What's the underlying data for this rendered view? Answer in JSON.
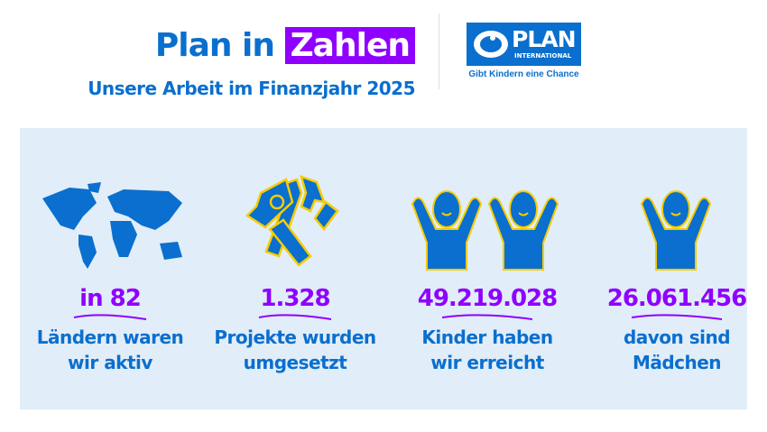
{
  "header": {
    "title_part1": "Plan in",
    "title_highlight": "Zahlen",
    "subtitle": "Unsere Arbeit im Finanzjahr 2025"
  },
  "logo": {
    "name": "PLAN",
    "sub": "INTERNATIONAL",
    "tagline": "Gibt Kindern eine Chance"
  },
  "colors": {
    "blue": "#0a6fce",
    "purple": "#8f00ff",
    "yellow": "#f5cc00",
    "panel": "#e1edf8"
  },
  "stats": [
    {
      "icon": "world-map-icon",
      "number": "in 82",
      "line1": "Ländern waren",
      "line2": "wir aktiv"
    },
    {
      "icon": "tools-icon",
      "number": "1.328",
      "line1": "Projekte wurden",
      "line2": "umgesetzt"
    },
    {
      "icon": "children-icon",
      "number": "49.219.028",
      "line1": "Kinder haben",
      "line2": "wir erreicht"
    },
    {
      "icon": "girl-icon",
      "number": "26.061.456",
      "line1": "davon sind",
      "line2": "Mädchen"
    }
  ]
}
